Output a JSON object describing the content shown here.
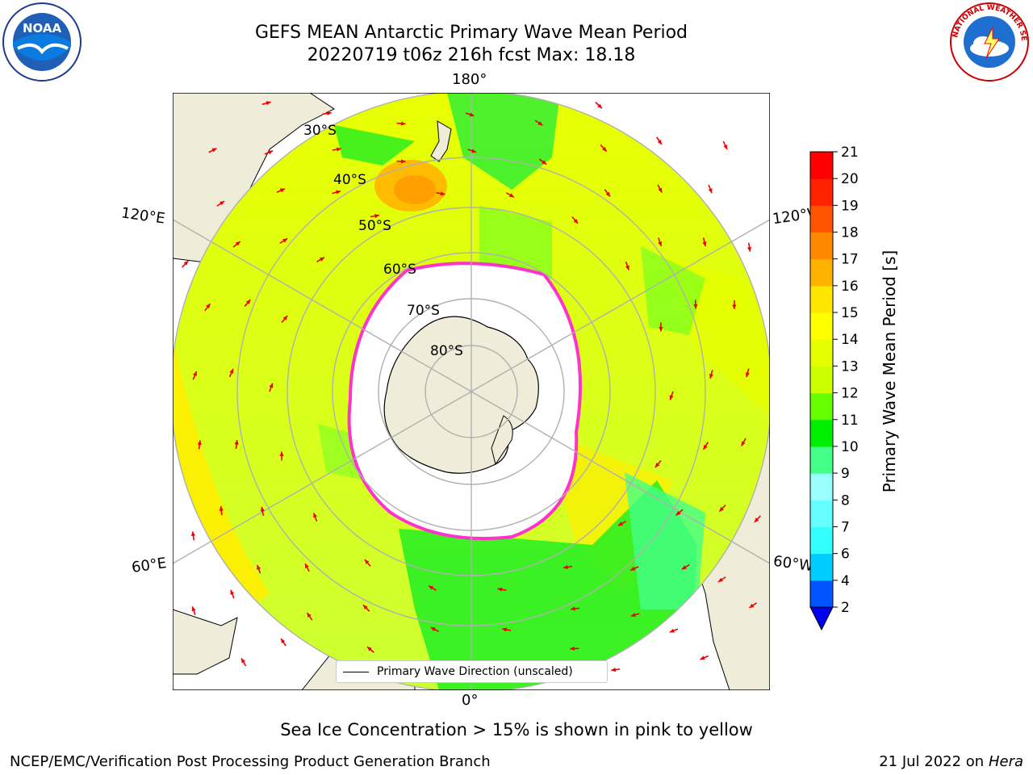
{
  "title": {
    "line1": "GEFS MEAN Antarctic Primary Wave Mean Period",
    "line2": "20220719 t06z 216h fcst   Max: 18.18"
  },
  "logos": {
    "left": {
      "name": "noaa-logo",
      "text": "NOAA"
    },
    "right": {
      "name": "national-weather-service-logo",
      "text": "NATIONAL WEATHER SERVICE"
    }
  },
  "map": {
    "projection": "south-polar-stereographic",
    "longitude_labels": {
      "top": "180°",
      "bottom": "0°",
      "upper_left": "120°E",
      "upper_right": "120°W",
      "lower_left": "60°E",
      "lower_right": "60°W"
    },
    "latitude_labels": [
      "30°S",
      "40°S",
      "50°S",
      "60°S",
      "70°S",
      "80°S"
    ],
    "legend": "Primary Wave Direction (unscaled)",
    "colors": {
      "land": "#efecd9",
      "ice_edge": "#ff33cc",
      "arrow": "#ee0000",
      "grid": "#b0b0b0"
    }
  },
  "colorbar": {
    "label": "Primary Wave Mean Period [s]",
    "ticks": [
      "2",
      "4",
      "6",
      "7",
      "8",
      "9",
      "10",
      "11",
      "12",
      "13",
      "14",
      "15",
      "16",
      "17",
      "18",
      "19",
      "20",
      "21"
    ],
    "colors": [
      "#0055ff",
      "#00ccff",
      "#33ffff",
      "#66ffff",
      "#99ffff",
      "#44ff88",
      "#00ee00",
      "#66ff00",
      "#ccff00",
      "#e6ff00",
      "#ffff00",
      "#ffe600",
      "#ffb300",
      "#ff8800",
      "#ff5500",
      "#ff2200",
      "#ff0000"
    ],
    "under_color": "#0000ee"
  },
  "footer": {
    "note": "Sea Ice Concentration > 15% is shown in pink to yellow",
    "credit": "NCEP/EMC/Verification Post Processing Product Generation Branch",
    "date": "21 Jul 2022 on",
    "machine": "Hera"
  }
}
